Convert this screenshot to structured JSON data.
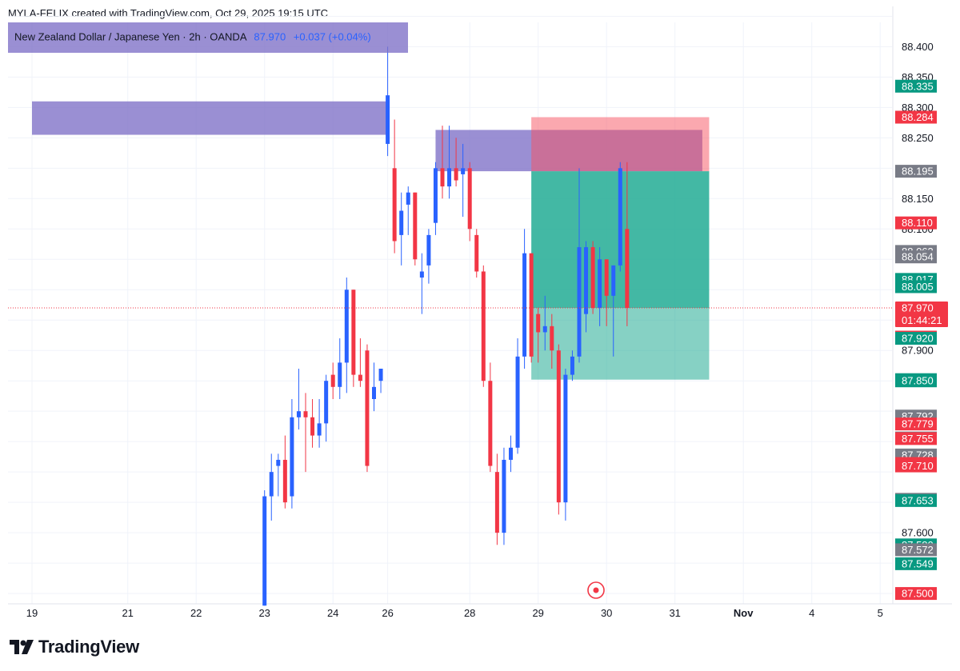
{
  "header": {
    "caption": "MYLA-FELIX created with TradingView.com, Oct 29, 2025 19:15 UTC"
  },
  "legend": {
    "symbol": "New Zealand Dollar / Japanese Yen · 2h · OANDA",
    "price": "87.970",
    "change": "+0.037 (+0.04%)"
  },
  "brand": {
    "name": "TradingView",
    "icon": "tradingview-logo-icon"
  },
  "colors": {
    "up": "#2962ff",
    "down": "#f23645",
    "zone": "#7e6fc7",
    "target": "#22ab94",
    "stop": "#f7525f",
    "tag_green": "#089981",
    "tag_red": "#f23645",
    "tag_gray": "#787b86"
  },
  "chart_data": {
    "type": "candlestick",
    "interval": "2h",
    "ylim": [
      87.483,
      88.44
    ],
    "grid": true,
    "price_scale_labels": [
      "88.400",
      "88.350",
      "88.300",
      "88.250",
      "88.150",
      "88.100",
      "87.900",
      "87.600"
    ],
    "time_scale_labels": [
      {
        "label": "19",
        "x": 0
      },
      {
        "label": "21",
        "x": 14
      },
      {
        "label": "22",
        "x": 24
      },
      {
        "label": "23",
        "x": 34
      },
      {
        "label": "24",
        "x": 44
      },
      {
        "label": "26",
        "x": 52
      },
      {
        "label": "28",
        "x": 64
      },
      {
        "label": "29",
        "x": 74
      },
      {
        "label": "30",
        "x": 84
      },
      {
        "label": "31",
        "x": 94
      },
      {
        "label": "Nov",
        "x": 104
      },
      {
        "label": "4",
        "x": 114
      },
      {
        "label": "5",
        "x": 124
      }
    ],
    "candles": [
      {
        "x": 34,
        "o": 87.48,
        "h": 87.67,
        "l": 87.48,
        "c": 87.66
      },
      {
        "x": 35,
        "o": 87.66,
        "h": 87.73,
        "l": 87.62,
        "c": 87.7
      },
      {
        "x": 36,
        "o": 87.71,
        "h": 87.73,
        "l": 87.66,
        "c": 87.72
      },
      {
        "x": 37,
        "o": 87.72,
        "h": 87.76,
        "l": 87.64,
        "c": 87.65
      },
      {
        "x": 38,
        "o": 87.66,
        "h": 87.82,
        "l": 87.64,
        "c": 87.79
      },
      {
        "x": 39,
        "o": 87.79,
        "h": 87.87,
        "l": 87.77,
        "c": 87.8
      },
      {
        "x": 40,
        "o": 87.8,
        "h": 87.83,
        "l": 87.7,
        "c": 87.79
      },
      {
        "x": 41,
        "o": 87.79,
        "h": 87.82,
        "l": 87.74,
        "c": 87.76
      },
      {
        "x": 42,
        "o": 87.76,
        "h": 87.82,
        "l": 87.74,
        "c": 87.78
      },
      {
        "x": 43,
        "o": 87.78,
        "h": 87.86,
        "l": 87.75,
        "c": 87.85
      },
      {
        "x": 44,
        "o": 87.86,
        "h": 87.88,
        "l": 87.82,
        "c": 87.84
      },
      {
        "x": 45,
        "o": 87.84,
        "h": 87.92,
        "l": 87.82,
        "c": 87.88
      },
      {
        "x": 46,
        "o": 87.88,
        "h": 88.02,
        "l": 87.83,
        "c": 88.0
      },
      {
        "x": 47,
        "o": 88.0,
        "h": 88.0,
        "l": 87.84,
        "c": 87.86
      },
      {
        "x": 48,
        "o": 87.86,
        "h": 87.92,
        "l": 87.84,
        "c": 87.85
      },
      {
        "x": 49,
        "o": 87.9,
        "h": 87.91,
        "l": 87.7,
        "c": 87.71
      },
      {
        "x": 50,
        "o": 87.82,
        "h": 87.88,
        "l": 87.8,
        "c": 87.84
      },
      {
        "x": 51,
        "o": 87.85,
        "h": 87.87,
        "l": 87.83,
        "c": 87.87
      },
      {
        "x": 52,
        "o": 88.24,
        "h": 88.4,
        "l": 88.22,
        "c": 88.32
      },
      {
        "x": 53,
        "o": 88.2,
        "h": 88.28,
        "l": 88.06,
        "c": 88.08
      },
      {
        "x": 54,
        "o": 88.09,
        "h": 88.16,
        "l": 88.04,
        "c": 88.13
      },
      {
        "x": 55,
        "o": 88.14,
        "h": 88.17,
        "l": 88.09,
        "c": 88.16
      },
      {
        "x": 56,
        "o": 88.16,
        "h": 88.16,
        "l": 88.04,
        "c": 88.05
      },
      {
        "x": 57,
        "o": 88.02,
        "h": 88.06,
        "l": 87.96,
        "c": 88.03
      },
      {
        "x": 58,
        "o": 88.04,
        "h": 88.1,
        "l": 88.01,
        "c": 88.09
      },
      {
        "x": 59,
        "o": 88.11,
        "h": 88.21,
        "l": 88.09,
        "c": 88.2
      },
      {
        "x": 60,
        "o": 88.2,
        "h": 88.27,
        "l": 88.15,
        "c": 88.17
      },
      {
        "x": 61,
        "o": 88.17,
        "h": 88.27,
        "l": 88.15,
        "c": 88.2
      },
      {
        "x": 62,
        "o": 88.2,
        "h": 88.25,
        "l": 88.17,
        "c": 88.18
      },
      {
        "x": 63,
        "o": 88.19,
        "h": 88.24,
        "l": 88.12,
        "c": 88.2
      },
      {
        "x": 64,
        "o": 88.2,
        "h": 88.21,
        "l": 88.08,
        "c": 88.1
      },
      {
        "x": 65,
        "o": 88.09,
        "h": 88.1,
        "l": 88.02,
        "c": 88.03
      },
      {
        "x": 66,
        "o": 88.03,
        "h": 88.04,
        "l": 87.84,
        "c": 87.85
      },
      {
        "x": 67,
        "o": 87.85,
        "h": 87.88,
        "l": 87.7,
        "c": 87.71
      },
      {
        "x": 68,
        "o": 87.7,
        "h": 87.73,
        "l": 87.58,
        "c": 87.6
      },
      {
        "x": 69,
        "o": 87.6,
        "h": 87.74,
        "l": 87.58,
        "c": 87.72
      },
      {
        "x": 70,
        "o": 87.72,
        "h": 87.76,
        "l": 87.7,
        "c": 87.74
      },
      {
        "x": 71,
        "o": 87.74,
        "h": 87.92,
        "l": 87.73,
        "c": 87.89
      },
      {
        "x": 72,
        "o": 87.89,
        "h": 88.1,
        "l": 87.87,
        "c": 88.06
      },
      {
        "x": 73,
        "o": 88.06,
        "h": 88.06,
        "l": 87.88,
        "c": 87.89
      },
      {
        "x": 74,
        "o": 87.96,
        "h": 87.97,
        "l": 87.88,
        "c": 87.93
      },
      {
        "x": 75,
        "o": 87.93,
        "h": 87.99,
        "l": 87.9,
        "c": 87.94
      },
      {
        "x": 76,
        "o": 87.94,
        "h": 87.96,
        "l": 87.87,
        "c": 87.9
      },
      {
        "x": 77,
        "o": 87.9,
        "h": 87.91,
        "l": 87.63,
        "c": 87.65
      },
      {
        "x": 78,
        "o": 87.65,
        "h": 87.87,
        "l": 87.62,
        "c": 87.86
      },
      {
        "x": 79,
        "o": 87.86,
        "h": 87.9,
        "l": 87.85,
        "c": 87.89
      },
      {
        "x": 80,
        "o": 87.89,
        "h": 88.2,
        "l": 87.88,
        "c": 88.07
      },
      {
        "x": 81,
        "o": 87.96,
        "h": 88.08,
        "l": 87.93,
        "c": 88.07
      },
      {
        "x": 82,
        "o": 88.07,
        "h": 88.08,
        "l": 87.96,
        "c": 87.97
      },
      {
        "x": 83,
        "o": 87.97,
        "h": 88.07,
        "l": 87.94,
        "c": 88.05
      },
      {
        "x": 84,
        "o": 88.05,
        "h": 88.05,
        "l": 87.94,
        "c": 87.99
      },
      {
        "x": 85,
        "o": 87.99,
        "h": 88.04,
        "l": 87.89,
        "c": 88.04
      },
      {
        "x": 86,
        "o": 88.04,
        "h": 88.21,
        "l": 88.03,
        "c": 88.2
      },
      {
        "x": 87,
        "o": 88.1,
        "h": 88.21,
        "l": 87.94,
        "c": 87.97
      }
    ],
    "zones": [
      {
        "name": "",
        "x_from": 0,
        "x_to": 52,
        "y_from": 88.255,
        "y_to": 88.31
      },
      {
        "name": "",
        "x_from": 59,
        "x_to": 98,
        "y_from": 88.195,
        "y_to": 88.263
      }
    ],
    "position": {
      "type": "short",
      "x_from": 73,
      "x_to": 99,
      "stop": 88.284,
      "entry": 87.97,
      "target": 87.852,
      "open": 88.195
    },
    "current_price_line": 87.97,
    "price_tags": [
      {
        "value": "88.335",
        "v": 88.335,
        "kind": "green"
      },
      {
        "value": "88.284",
        "v": 88.284,
        "kind": "red"
      },
      {
        "value": "88.195",
        "v": 88.195,
        "kind": "gray"
      },
      {
        "value": "88.110",
        "v": 88.11,
        "kind": "red"
      },
      {
        "value": "88.063",
        "v": 88.063,
        "kind": "gray"
      },
      {
        "value": "88.054",
        "v": 88.054,
        "kind": "gray"
      },
      {
        "value": "88.017",
        "v": 88.017,
        "kind": "green"
      },
      {
        "value": "88.005",
        "v": 88.005,
        "kind": "green"
      },
      {
        "value": "87.922",
        "v": 87.922,
        "kind": "red"
      },
      {
        "value": "87.920",
        "v": 87.92,
        "kind": "green"
      },
      {
        "value": "87.852",
        "v": 87.852,
        "kind": "green"
      },
      {
        "value": "87.850",
        "v": 87.85,
        "kind": "green"
      },
      {
        "value": "87.792",
        "v": 87.792,
        "kind": "gray"
      },
      {
        "value": "87.779",
        "v": 87.779,
        "kind": "red"
      },
      {
        "value": "87.756",
        "v": 87.756,
        "kind": "gray"
      },
      {
        "value": "87.755",
        "v": 87.755,
        "kind": "red"
      },
      {
        "value": "87.728",
        "v": 87.728,
        "kind": "gray"
      },
      {
        "value": "87.714",
        "v": 87.714,
        "kind": "red"
      },
      {
        "value": "87.710",
        "v": 87.71,
        "kind": "red"
      },
      {
        "value": "87.655",
        "v": 87.655,
        "kind": "gray"
      },
      {
        "value": "87.653",
        "v": 87.653,
        "kind": "green"
      },
      {
        "value": "87.580",
        "v": 87.58,
        "kind": "green"
      },
      {
        "value": "87.572",
        "v": 87.572,
        "kind": "gray"
      },
      {
        "value": "87.549",
        "v": 87.549,
        "kind": "green"
      },
      {
        "value": "87.500",
        "v": 87.5,
        "kind": "red"
      }
    ],
    "current_tag": {
      "price": "87.970",
      "countdown": "01:44:21"
    }
  }
}
